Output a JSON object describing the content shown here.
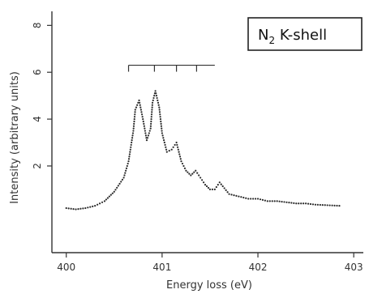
{
  "chart_data": {
    "type": "line",
    "title": "",
    "xlabel": "Energy loss (eV)",
    "ylabel": "Intensity (arbitrary units)",
    "xlim": [
      399.85,
      403.1
    ],
    "ylim": [
      -1.7,
      8.6
    ],
    "x_ticks": [
      400,
      401,
      402,
      403
    ],
    "x_tick_labels": [
      "400",
      "401",
      "402",
      "403"
    ],
    "y_ticks": [
      2,
      4,
      6,
      8
    ],
    "y_tick_labels": [
      "2",
      "4",
      "6",
      "8"
    ],
    "grid": false,
    "legend": {
      "text": "N",
      "subscript": "2",
      "suffix": " K-shell",
      "placement": "top-right"
    },
    "series": [
      {
        "style": "dotted",
        "x": [
          400.0,
          400.1,
          400.2,
          400.3,
          400.4,
          400.5,
          400.6,
          400.65,
          400.7,
          400.72,
          400.76,
          400.8,
          400.84,
          400.88,
          400.9,
          400.93,
          400.97,
          401.0,
          401.05,
          401.1,
          401.15,
          401.2,
          401.25,
          401.3,
          401.35,
          401.4,
          401.45,
          401.5,
          401.55,
          401.6,
          401.7,
          401.8,
          401.9,
          402.0,
          402.1,
          402.2,
          402.3,
          402.4,
          402.5,
          402.6,
          402.85
        ],
        "y": [
          0.2,
          0.15,
          0.2,
          0.3,
          0.5,
          0.9,
          1.5,
          2.2,
          3.5,
          4.4,
          4.8,
          4.0,
          3.1,
          3.6,
          4.7,
          5.2,
          4.5,
          3.4,
          2.6,
          2.7,
          3.0,
          2.2,
          1.8,
          1.6,
          1.8,
          1.5,
          1.2,
          1.0,
          1.0,
          1.3,
          0.8,
          0.7,
          0.6,
          0.6,
          0.5,
          0.5,
          0.45,
          0.4,
          0.4,
          0.35,
          0.3
        ]
      }
    ],
    "annotations": [
      {
        "type": "vibrational-ladder",
        "y": 6.3,
        "x_start": 400.65,
        "x_end": 401.55,
        "x_ticks": [
          400.65,
          400.92,
          401.15,
          401.36
        ]
      }
    ]
  }
}
